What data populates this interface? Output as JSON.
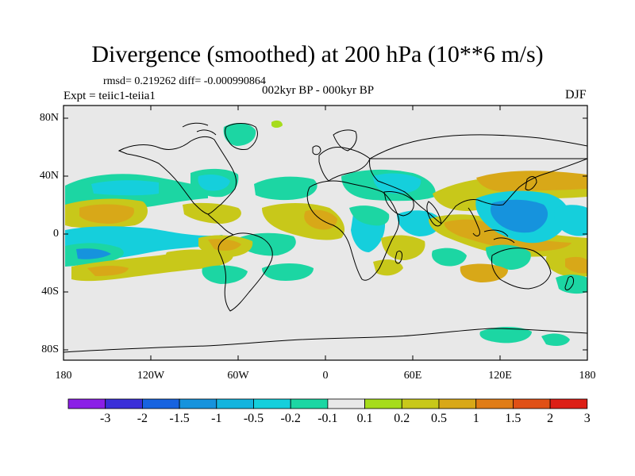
{
  "title": "Divergence (smoothed) at 200 hPa (10**6 m/s)",
  "stats": "rmsd= 0.219262 diff= -0.000990864",
  "experiment": "Expt = teiic1-teiia1",
  "period": "002kyr BP - 000kyr BP",
  "season": "DJF",
  "lat_ticks": [
    "80N",
    "40N",
    "0",
    "40S",
    "80S"
  ],
  "lon_ticks": [
    "180",
    "120W",
    "60W",
    "0",
    "60E",
    "120E",
    "180"
  ],
  "colorbar": {
    "labels": [
      "-3",
      "-2",
      "-1.5",
      "-1",
      "-0.5",
      "-0.2",
      "-0.1",
      "0.1",
      "0.2",
      "0.5",
      "1",
      "1.5",
      "2",
      "3"
    ],
    "colors": [
      "#8b1fe6",
      "#3a2fd8",
      "#1763e0",
      "#1693dd",
      "#14b4de",
      "#15cfdc",
      "#1cd6a3",
      "#e8e8e8",
      "#a6dc1c",
      "#c8c81a",
      "#d8a818",
      "#e07c16",
      "#e05016",
      "#dd1f16"
    ]
  },
  "map": {
    "background": "#e8e8e8",
    "coastline_color": "#000000"
  }
}
